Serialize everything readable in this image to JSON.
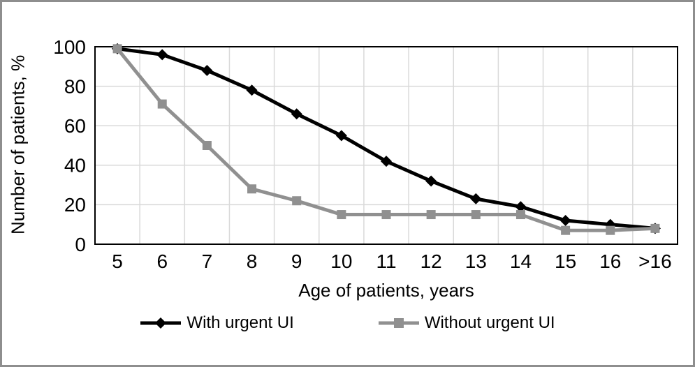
{
  "window": {
    "background_color": "#ffffff",
    "frame_border_color": "#8e8e8e"
  },
  "chart_data": {
    "type": "line",
    "title": "",
    "xlabel": "Age of patients, years",
    "ylabel": "Number of patients, %",
    "categories": [
      "5",
      "6",
      "7",
      "8",
      "9",
      "10",
      "11",
      "12",
      "13",
      "14",
      "15",
      "16",
      ">16"
    ],
    "ylim": [
      0,
      100
    ],
    "y_ticks": [
      0,
      20,
      40,
      60,
      80,
      100
    ],
    "grid": true,
    "gridline_color": "#d9d9d9",
    "axis_frame_color": "#000000",
    "legend_position": "bottom",
    "series": [
      {
        "name": "With urgent UI",
        "marker": "diamond",
        "color": "#000000",
        "values": [
          99,
          96,
          88,
          78,
          66,
          55,
          42,
          32,
          23,
          19,
          12,
          10,
          8
        ]
      },
      {
        "name": "Without urgent UI",
        "marker": "square",
        "color": "#909090",
        "values": [
          99,
          71,
          50,
          28,
          22,
          15,
          15,
          15,
          15,
          15,
          7,
          7,
          8
        ]
      }
    ]
  }
}
